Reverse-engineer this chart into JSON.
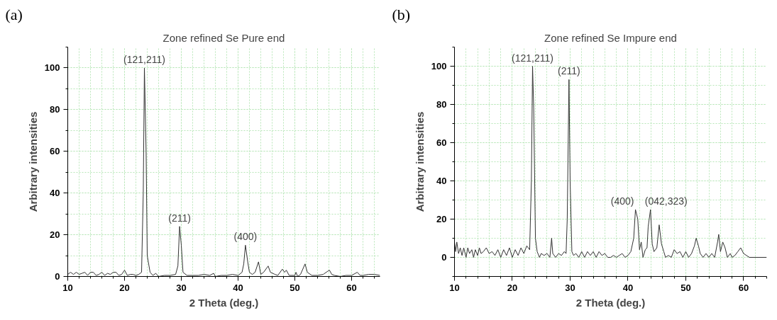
{
  "chart_data": [
    {
      "type": "line",
      "title": "Zone refined Se Pure end",
      "xlabel": "2 Theta (deg.)",
      "ylabel": "Arbitrary intensities",
      "xlim": [
        10,
        65
      ],
      "ylim": [
        0,
        110
      ],
      "xticks": [
        10,
        20,
        30,
        40,
        50,
        60
      ],
      "yticks": [
        0,
        20,
        40,
        60,
        80,
        100
      ],
      "grid": true,
      "marker": "none",
      "line_style": "solid",
      "annotations": [
        "(a)",
        {
          "text": "(121,211)",
          "x": 23.5,
          "y": 100
        },
        {
          "text": "(211)",
          "x": 29.7,
          "y": 24
        },
        {
          "text": "(400)",
          "x": 41.3,
          "y": 15
        }
      ],
      "series": [
        {
          "color": "#333333",
          "x": [
            10,
            10.5,
            11,
            11.5,
            12,
            12.5,
            13,
            13.5,
            14,
            14.5,
            15,
            15.5,
            16,
            16.5,
            17,
            17.5,
            18,
            18.5,
            19,
            19.5,
            20,
            20.5,
            21,
            21.5,
            22,
            22.5,
            23,
            23.3,
            23.5,
            23.8,
            24,
            24.5,
            25,
            25.5,
            26,
            27,
            28,
            29,
            29.4,
            29.7,
            30,
            30.3,
            31,
            32,
            33,
            34,
            35,
            35.7,
            36,
            37,
            38,
            39,
            40,
            40.7,
            41,
            41.3,
            41.7,
            42,
            42.5,
            43,
            43.6,
            44,
            44.5,
            45.3,
            45.7,
            46.5,
            47,
            47.8,
            48.2,
            48.5,
            49,
            50,
            50.2,
            50.5,
            51,
            51.8,
            52.2,
            53,
            54,
            55,
            55.8,
            56.1,
            56.5,
            57,
            58,
            59,
            60,
            61,
            61.5,
            62,
            63,
            64,
            65
          ],
          "values": [
            1,
            2,
            1,
            2,
            1,
            1.5,
            2,
            0.5,
            2,
            2,
            0.5,
            1,
            2,
            0.5,
            1.5,
            1,
            2,
            2,
            0.5,
            1,
            3,
            0.5,
            1,
            1,
            0.5,
            1,
            2,
            40,
            100,
            60,
            10,
            2,
            0.5,
            1.5,
            0,
            0.5,
            0.5,
            1,
            5,
            24,
            15,
            2,
            0.5,
            0.5,
            0.5,
            1,
            0.5,
            1.5,
            0,
            0.5,
            0.5,
            1,
            0.5,
            2,
            6,
            15,
            7,
            2,
            1,
            2,
            7,
            1,
            2,
            5,
            2,
            1,
            0.5,
            3.5,
            2,
            3,
            0.5,
            0.5,
            2,
            0,
            1,
            6,
            2,
            0.5,
            0.5,
            1,
            2.5,
            3,
            1,
            0.5,
            0,
            0.5,
            0.5,
            2,
            0.5,
            0.5,
            1,
            1,
            0.5
          ]
        }
      ]
    },
    {
      "type": "line",
      "title": "Zone refined Se Impure end",
      "xlabel": "2 Theta (deg.)",
      "ylabel": "Arbitrary intensities",
      "xlim": [
        10,
        64
      ],
      "ylim": [
        -10,
        110
      ],
      "xticks": [
        10,
        20,
        30,
        40,
        50,
        60
      ],
      "yticks": [
        0,
        20,
        40,
        60,
        80,
        100
      ],
      "grid": true,
      "marker": "none",
      "line_style": "solid",
      "annotations": [
        "(b)",
        {
          "text": "(121,211)",
          "x": 23.5,
          "y": 100
        },
        {
          "text": "(211)",
          "x": 29.8,
          "y": 93
        },
        {
          "text": "(400)",
          "x": 41.3,
          "y": 25
        },
        {
          "text": "(042,323)",
          "x": 43.9,
          "y": 25
        }
      ],
      "series": [
        {
          "color": "#333333",
          "x": [
            10,
            10.2,
            10.4,
            10.7,
            11,
            11.3,
            11.6,
            12,
            12.3,
            12.6,
            13,
            13.3,
            13.6,
            14,
            14.3,
            14.6,
            15,
            15.5,
            16,
            16.5,
            17,
            17.5,
            18,
            18.5,
            19,
            19.5,
            20,
            20.5,
            21,
            21.5,
            22,
            22.5,
            23,
            23.3,
            23.5,
            23.7,
            24,
            24.3,
            24.7,
            25,
            25.5,
            26,
            26.5,
            26.8,
            27,
            27.5,
            28,
            28.5,
            29,
            29.3,
            29.5,
            29.8,
            30,
            30.3,
            30.6,
            31,
            31.5,
            32,
            32.5,
            33,
            33.5,
            34,
            34.5,
            35,
            35.5,
            36,
            36.5,
            37,
            37.5,
            38,
            38.5,
            39,
            39.5,
            40,
            40.5,
            41,
            41.3,
            41.7,
            42,
            42.3,
            42.6,
            43,
            43.3,
            43.5,
            43.9,
            44.2,
            44.5,
            45,
            45.4,
            45.8,
            46.2,
            46.5,
            47,
            47.5,
            48,
            48.5,
            49,
            49.5,
            50,
            50.5,
            51,
            51.5,
            51.8,
            52.2,
            52.5,
            53,
            53.5,
            54,
            54.5,
            55,
            55.5,
            55.7,
            56,
            56.4,
            56.8,
            57.2,
            57.7,
            58,
            58.5,
            59,
            59.5,
            60,
            60.5,
            61,
            64
          ],
          "values": [
            8,
            3,
            8,
            2,
            5,
            1,
            5,
            0,
            5,
            2,
            4,
            0,
            4,
            1,
            5,
            2,
            3,
            5,
            2,
            3,
            1,
            4,
            0,
            4,
            1,
            5,
            0,
            4,
            1,
            5,
            2,
            6,
            4,
            40,
            100,
            78,
            10,
            3,
            0,
            2,
            1,
            2,
            0,
            10,
            2,
            0,
            2,
            1,
            3,
            2,
            20,
            93,
            40,
            3,
            1,
            2,
            0,
            3,
            0,
            3,
            1,
            3,
            0,
            3,
            1,
            2,
            0,
            0,
            1,
            0,
            1,
            2,
            0,
            1,
            3,
            10,
            25,
            20,
            4,
            8,
            0,
            4,
            5,
            16,
            25,
            7,
            3,
            5,
            17,
            7,
            3,
            0,
            1,
            0,
            4,
            2,
            3,
            0,
            3,
            0,
            2,
            6,
            10,
            6,
            2,
            0,
            2,
            0,
            2,
            0,
            8,
            12,
            3,
            8,
            5,
            0,
            2,
            0,
            1,
            3,
            5,
            2,
            1,
            0,
            0
          ]
        }
      ]
    }
  ]
}
